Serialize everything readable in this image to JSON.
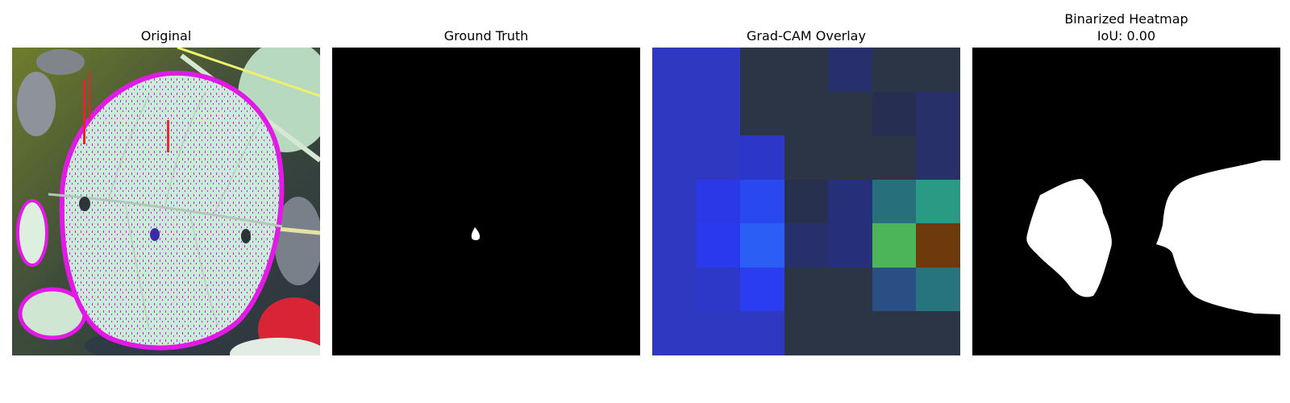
{
  "panels": [
    {
      "title": "Original"
    },
    {
      "title": "Ground Truth"
    },
    {
      "title": "Grad-CAM Overlay"
    },
    {
      "title_line1": "Binarized Heatmap",
      "title_line2": "IoU: 0.00"
    }
  ],
  "gradcam": {
    "grid": [
      [
        "#2e38c0",
        "#2e38c0",
        "#2b3545",
        "#2b3545",
        "#27306a",
        "#2b3545",
        "#2b3545"
      ],
      [
        "#2e38c0",
        "#2e38c0",
        "#2b3545",
        "#2b3545",
        "#2b3545",
        "#262f52",
        "#28306a"
      ],
      [
        "#2e38c0",
        "#2e38c0",
        "#2c36c8",
        "#2b3545",
        "#2b3545",
        "#2b3545",
        "#28306a"
      ],
      [
        "#2e38c0",
        "#2a38e8",
        "#2a48f0",
        "#283050",
        "#262f7a",
        "#276f7a",
        "#2a9a85"
      ],
      [
        "#2e38c0",
        "#2a38ee",
        "#2a5ef5",
        "#27306a",
        "#262f7a",
        "#4cb55a",
        "#6e3a0c"
      ],
      [
        "#2e38c0",
        "#2e38c8",
        "#2a3df0",
        "#2b3545",
        "#2b3545",
        "#2a4f85",
        "#27737e"
      ],
      [
        "#2e38c0",
        "#2e38c0",
        "#2e38c0",
        "#2b3545",
        "#2b3545",
        "#2b3545",
        "#2b3545"
      ]
    ]
  }
}
